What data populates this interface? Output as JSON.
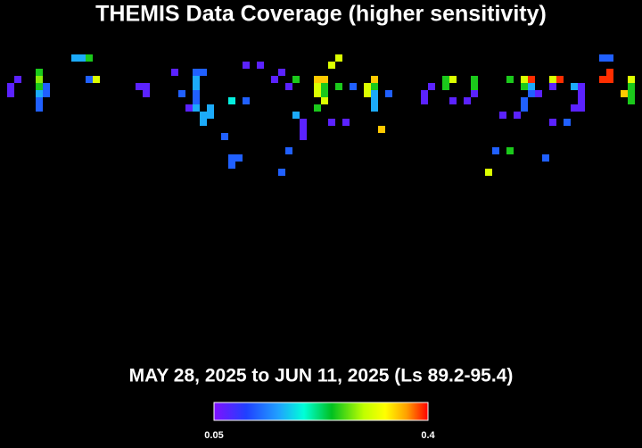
{
  "map": {
    "title": "THEMIS Data Coverage (higher sensitivity)",
    "subtitle": "MAY 28, 2025 to JUN 11, 2025 (Ls 89.2-95.4)",
    "colorbar": {
      "min": 0.05,
      "max": 0.4
    },
    "cells": [
      [
        10,
        0,
        0.16
      ],
      [
        11,
        0,
        0.16
      ],
      [
        12,
        0,
        0.25
      ],
      [
        5,
        2,
        0.25
      ],
      [
        5,
        3,
        0.28
      ],
      [
        5,
        4,
        0.25
      ],
      [
        5,
        5,
        0.16
      ],
      [
        6,
        4,
        0.12
      ],
      [
        6,
        5,
        0.12
      ],
      [
        5,
        6,
        0.12
      ],
      [
        5,
        7,
        0.12
      ],
      [
        2,
        3,
        0.07
      ],
      [
        1,
        4,
        0.07
      ],
      [
        1,
        5,
        0.07
      ],
      [
        12,
        3,
        0.12
      ],
      [
        13,
        3,
        0.31
      ],
      [
        19,
        4,
        0.07
      ],
      [
        20,
        4,
        0.07
      ],
      [
        20,
        5,
        0.07
      ],
      [
        24,
        2,
        0.07
      ],
      [
        27,
        2,
        0.12
      ],
      [
        28,
        2,
        0.12
      ],
      [
        27,
        3,
        0.16
      ],
      [
        27,
        4,
        0.16
      ],
      [
        27,
        5,
        0.12
      ],
      [
        27,
        6,
        0.12
      ],
      [
        26,
        7,
        0.07
      ],
      [
        27,
        7,
        0.16
      ],
      [
        28,
        8,
        0.16
      ],
      [
        29,
        7,
        0.16
      ],
      [
        29,
        8,
        0.16
      ],
      [
        28,
        9,
        0.16
      ],
      [
        25,
        5,
        0.12
      ],
      [
        32,
        6,
        0.19
      ],
      [
        34,
        6,
        0.12
      ],
      [
        31,
        11,
        0.12
      ],
      [
        32,
        14,
        0.12
      ],
      [
        33,
        14,
        0.12
      ],
      [
        32,
        15,
        0.12
      ],
      [
        34,
        1,
        0.07
      ],
      [
        36,
        1,
        0.07
      ],
      [
        38,
        3,
        0.07
      ],
      [
        39,
        2,
        0.07
      ],
      [
        40,
        4,
        0.07
      ],
      [
        41,
        3,
        0.25
      ],
      [
        41,
        8,
        0.16
      ],
      [
        42,
        9,
        0.07
      ],
      [
        42,
        10,
        0.07
      ],
      [
        42,
        11,
        0.07
      ],
      [
        40,
        13,
        0.12
      ],
      [
        39,
        16,
        0.12
      ],
      [
        47,
        0,
        0.31
      ],
      [
        46,
        1,
        0.31
      ],
      [
        44,
        3,
        0.35
      ],
      [
        45,
        3,
        0.35
      ],
      [
        44,
        4,
        0.31
      ],
      [
        45,
        4,
        0.25
      ],
      [
        44,
        5,
        0.31
      ],
      [
        45,
        5,
        0.25
      ],
      [
        45,
        6,
        0.31
      ],
      [
        44,
        7,
        0.25
      ],
      [
        47,
        4,
        0.25
      ],
      [
        49,
        4,
        0.12
      ],
      [
        46,
        9,
        0.07
      ],
      [
        48,
        9,
        0.07
      ],
      [
        51,
        4,
        0.31
      ],
      [
        52,
        3,
        0.35
      ],
      [
        52,
        4,
        0.25
      ],
      [
        51,
        5,
        0.31
      ],
      [
        52,
        5,
        0.16
      ],
      [
        52,
        6,
        0.16
      ],
      [
        52,
        7,
        0.16
      ],
      [
        54,
        5,
        0.12
      ],
      [
        53,
        10,
        0.35
      ],
      [
        59,
        5,
        0.07
      ],
      [
        59,
        6,
        0.07
      ],
      [
        60,
        4,
        0.07
      ],
      [
        62,
        3,
        0.25
      ],
      [
        62,
        4,
        0.25
      ],
      [
        63,
        3,
        0.31
      ],
      [
        63,
        6,
        0.07
      ],
      [
        65,
        6,
        0.07
      ],
      [
        66,
        3,
        0.25
      ],
      [
        66,
        4,
        0.25
      ],
      [
        66,
        5,
        0.07
      ],
      [
        71,
        3,
        0.25
      ],
      [
        73,
        3,
        0.31
      ],
      [
        74,
        3,
        0.39
      ],
      [
        73,
        4,
        0.25
      ],
      [
        74,
        4,
        0.16
      ],
      [
        74,
        5,
        0.12
      ],
      [
        73,
        6,
        0.12
      ],
      [
        73,
        7,
        0.12
      ],
      [
        72,
        8,
        0.07
      ],
      [
        70,
        8,
        0.07
      ],
      [
        75,
        5,
        0.07
      ],
      [
        77,
        3,
        0.31
      ],
      [
        78,
        3,
        0.39
      ],
      [
        77,
        4,
        0.07
      ],
      [
        80,
        4,
        0.16
      ],
      [
        81,
        4,
        0.07
      ],
      [
        81,
        5,
        0.07
      ],
      [
        81,
        6,
        0.07
      ],
      [
        81,
        7,
        0.07
      ],
      [
        80,
        7,
        0.07
      ],
      [
        79,
        9,
        0.12
      ],
      [
        77,
        9,
        0.07
      ],
      [
        69,
        13,
        0.12
      ],
      [
        71,
        13,
        0.25
      ],
      [
        68,
        16,
        0.31
      ],
      [
        76,
        14,
        0.12
      ],
      [
        84,
        0,
        0.12
      ],
      [
        85,
        0,
        0.12
      ],
      [
        85,
        2,
        0.39
      ],
      [
        84,
        3,
        0.39
      ],
      [
        85,
        3,
        0.39
      ],
      [
        88,
        3,
        0.31
      ],
      [
        88,
        4,
        0.25
      ],
      [
        87,
        5,
        0.35
      ],
      [
        88,
        5,
        0.25
      ],
      [
        88,
        6,
        0.25
      ]
    ]
  }
}
